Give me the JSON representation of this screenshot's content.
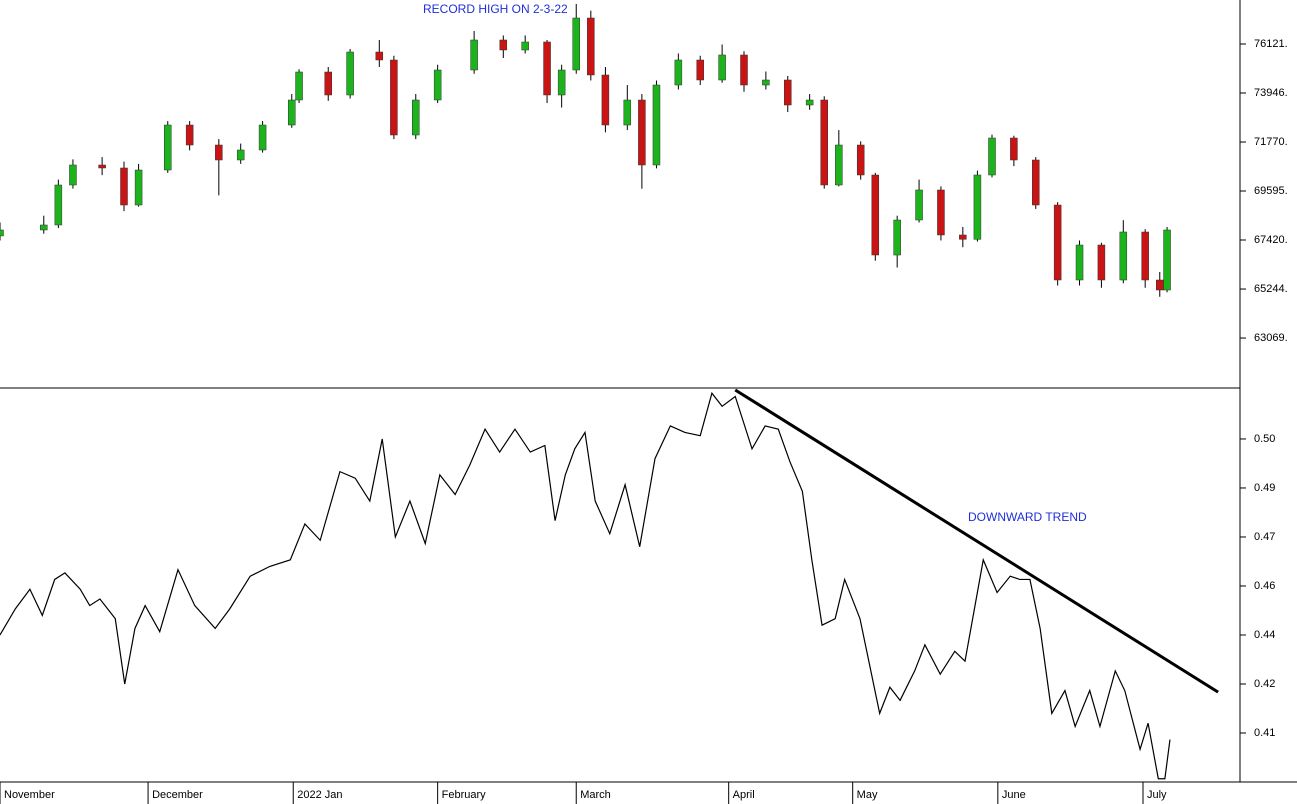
{
  "chart_data": [
    {
      "type": "candlestick",
      "annotation": "RECORD HIGH ON 2-3-22",
      "xlim": [
        0,
        170
      ],
      "ylim": [
        60851,
        78074
      ],
      "yticks": [
        {
          "value": 63069,
          "label": "63069."
        },
        {
          "value": 65244,
          "label": "65244."
        },
        {
          "value": 67420,
          "label": "67420."
        },
        {
          "value": 69595,
          "label": "69595."
        },
        {
          "value": 71770,
          "label": "71770."
        },
        {
          "value": 73946,
          "label": "73946."
        },
        {
          "value": 76121,
          "label": "76121."
        }
      ],
      "up_color": "#1db31d",
      "down_color": "#c81414",
      "x": [
        0,
        6,
        8,
        10,
        14,
        17,
        19,
        23,
        26,
        30,
        33,
        36,
        40,
        41,
        45,
        48,
        52,
        54,
        57,
        60,
        65,
        69,
        72,
        75,
        77,
        79,
        81,
        83,
        86,
        88,
        90,
        93,
        96,
        99,
        102,
        105,
        108,
        111,
        113,
        115,
        118,
        120,
        123,
        126,
        129,
        132,
        134,
        136,
        139,
        142,
        145,
        148,
        151,
        154,
        157,
        159,
        160
      ],
      "open": [
        67600,
        67865,
        68087,
        69862,
        70750,
        70617,
        68974,
        70528,
        72525,
        71637,
        70972,
        71416,
        72525,
        73635,
        74878,
        73857,
        75766,
        75411,
        72081,
        73635,
        74967,
        76299,
        75855,
        76210,
        73857,
        74967,
        77275,
        74745,
        72525,
        73635,
        70750,
        74301,
        75411,
        74523,
        75633,
        74301,
        74523,
        73413,
        73635,
        69862,
        71637,
        70306,
        66754,
        68308,
        69641,
        67643,
        67450,
        70306,
        71948,
        70972,
        68974,
        65645,
        67198,
        65645,
        67776,
        65645,
        65201
      ],
      "high": [
        68200,
        68500,
        70100,
        71000,
        71100,
        70900,
        70800,
        72700,
        72700,
        71900,
        71700,
        72700,
        73900,
        75000,
        75100,
        75900,
        76300,
        75600,
        73900,
        75200,
        76700,
        76500,
        76500,
        76300,
        75200,
        77900,
        77600,
        75100,
        74300,
        73900,
        74500,
        75700,
        75600,
        76100,
        75800,
        74900,
        74700,
        73900,
        73800,
        72300,
        71800,
        70400,
        68500,
        70100,
        69800,
        68000,
        70500,
        72100,
        72050,
        71100,
        69100,
        67400,
        67300,
        68300,
        67900,
        66000,
        68000
      ],
      "low": [
        67400,
        67700,
        67950,
        69700,
        70300,
        68700,
        68900,
        70400,
        71400,
        69400,
        70800,
        71300,
        72400,
        73500,
        73600,
        73700,
        75100,
        71900,
        71900,
        73500,
        74800,
        75500,
        75700,
        73500,
        73300,
        74800,
        74500,
        72200,
        72300,
        69700,
        70600,
        74100,
        74300,
        74400,
        74000,
        74100,
        73100,
        73200,
        69700,
        69800,
        70100,
        66500,
        66200,
        68200,
        67400,
        67100,
        67350,
        70200,
        70700,
        68800,
        65400,
        65400,
        65300,
        65500,
        65300,
        64900,
        65100
      ],
      "close": [
        67865,
        68087,
        69862,
        70750,
        70617,
        68974,
        70528,
        72525,
        71637,
        70972,
        71416,
        72525,
        73635,
        74878,
        73857,
        75766,
        75411,
        72081,
        73635,
        74967,
        76299,
        75855,
        76210,
        73857,
        74967,
        77275,
        74745,
        72525,
        73635,
        70750,
        74301,
        75411,
        74523,
        75633,
        74301,
        74523,
        73413,
        73635,
        69862,
        71637,
        70306,
        66754,
        68308,
        69641,
        67643,
        67450,
        70306,
        71948,
        70972,
        68974,
        65645,
        67198,
        65645,
        67776,
        65645,
        65201,
        67865
      ]
    },
    {
      "type": "line",
      "annotation": "DOWNWARD TREND",
      "color": "#000000",
      "xlim": [
        0,
        170
      ],
      "ylim": [
        0.395,
        0.5156
      ],
      "yticks": [
        0.41,
        {
          "value": 0.425,
          "label": "0.42"
        },
        0.44,
        {
          "value": 0.455,
          "label": "0.46"
        },
        0.47,
        {
          "value": 0.485,
          "label": "0.49"
        },
        {
          "value": 0.5,
          "label": "0.50"
        }
      ],
      "xticks": [
        {
          "value": 0,
          "label": "November"
        },
        {
          "value": 20.3,
          "label": "December"
        },
        {
          "value": 40.2,
          "label": "2022 Jan"
        },
        {
          "value": 60,
          "label": "February"
        },
        {
          "value": 79,
          "label": "March"
        },
        {
          "value": 99.9,
          "label": "April"
        },
        {
          "value": 116.9,
          "label": "May"
        },
        {
          "value": 136.8,
          "label": "June"
        },
        {
          "value": 156.7,
          "label": "July"
        }
      ],
      "x": [
        0,
        2.1,
        4.1,
        5.8,
        7.5,
        8.9,
        11,
        12.3,
        13.7,
        15.8,
        17.1,
        18.5,
        19.9,
        21.9,
        24.4,
        26.7,
        29.5,
        31.5,
        34.3,
        37,
        39.8,
        41.8,
        43.9,
        46.6,
        48.7,
        50.7,
        52.4,
        54.2,
        56.2,
        58.3,
        60.3,
        62.4,
        64.4,
        66.5,
        68.5,
        70.6,
        72.7,
        74.7,
        76.1,
        77.5,
        78.8,
        80.2,
        81.6,
        83.6,
        85.7,
        87.7,
        89.8,
        91.9,
        93.9,
        96,
        97.6,
        99,
        100.8,
        103.1,
        104.9,
        106.7,
        108.3,
        110,
        111.3,
        112.7,
        114.5,
        115.8,
        117.9,
        120.6,
        122,
        123.4,
        125.4,
        126.8,
        128.9,
        130.9,
        132.3,
        134.8,
        136.7,
        138.5,
        139.8,
        141.2,
        142.6,
        144.2,
        146,
        147.4,
        149.4,
        150.8,
        152.9,
        154.2,
        156.3,
        157.4,
        158.8,
        159.7,
        160.4
      ],
      "values": [
        0.44,
        0.448,
        0.454,
        0.446,
        0.457,
        0.459,
        0.454,
        0.449,
        0.451,
        0.445,
        0.425,
        0.442,
        0.449,
        0.441,
        0.46,
        0.449,
        0.442,
        0.448,
        0.458,
        0.461,
        0.463,
        0.474,
        0.469,
        0.49,
        0.488,
        0.481,
        0.5,
        0.47,
        0.481,
        0.468,
        0.489,
        0.483,
        0.492,
        0.503,
        0.496,
        0.503,
        0.496,
        0.498,
        0.475,
        0.489,
        0.497,
        0.502,
        0.481,
        0.471,
        0.486,
        0.467,
        0.494,
        0.504,
        0.502,
        0.501,
        0.514,
        0.51,
        0.513,
        0.497,
        0.504,
        0.503,
        0.493,
        0.484,
        0.463,
        0.443,
        0.445,
        0.457,
        0.445,
        0.416,
        0.424,
        0.42,
        0.429,
        0.437,
        0.428,
        0.435,
        0.432,
        0.463,
        0.453,
        0.458,
        0.457,
        0.457,
        0.442,
        0.416,
        0.423,
        0.412,
        0.423,
        0.412,
        0.429,
        0.423,
        0.405,
        0.413,
        0.396,
        0.396,
        0.408
      ],
      "trendline": {
        "x": [
          100.8,
          167
        ],
        "values": [
          0.515,
          0.4225
        ]
      }
    }
  ]
}
